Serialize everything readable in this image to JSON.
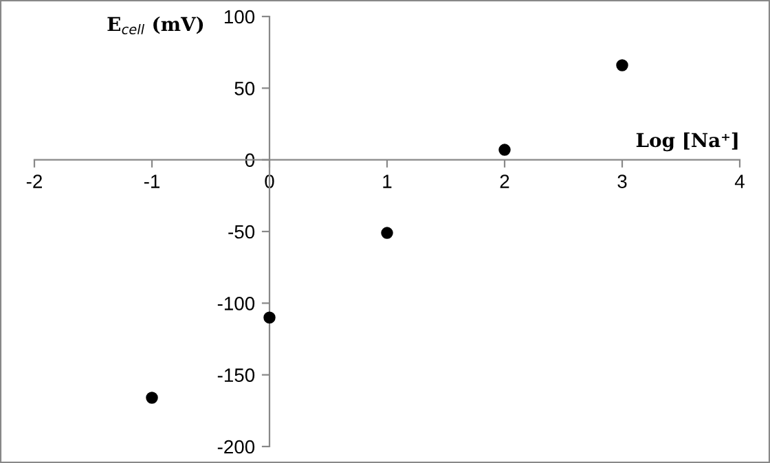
{
  "chart_data": {
    "type": "scatter",
    "xlabel": "Log [Na⁺]",
    "ylabel": "E$_{cell}$ (mV)",
    "x": [
      -1,
      0,
      1,
      2,
      3
    ],
    "series": [
      {
        "color": "#000000",
        "values": [
          -166,
          -110,
          -51,
          7,
          66
        ]
      }
    ],
    "xlim": [
      -2,
      4
    ],
    "xticks": [
      -2,
      -1,
      0,
      1,
      2,
      3,
      4
    ],
    "ylim": [
      -200,
      100
    ],
    "yticks": [
      -200,
      -150,
      -100,
      -50,
      0,
      50,
      100
    ],
    "marker": "circle",
    "grid": false,
    "legend": false
  }
}
